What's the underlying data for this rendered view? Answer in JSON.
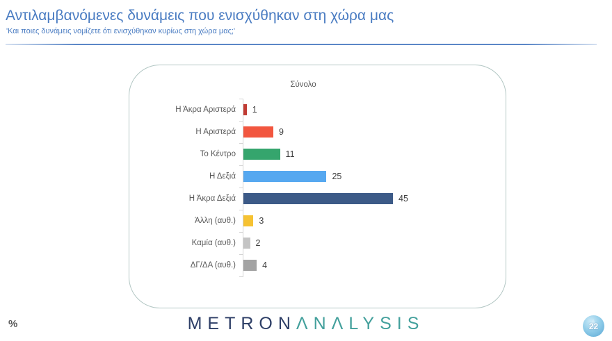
{
  "page": {
    "title": "Αντιλαμβανόμενες δυνάμεις που ενισχύθηκαν στη χώρα μας",
    "subtitle": "'Και ποιες δυνάμεις νομίζετε ότι ενισχύθηκαν κυρίως στη χώρα μας;'",
    "percent_note": "%",
    "page_number": "22"
  },
  "logo": {
    "left": "METRON",
    "right": "ΛNΛLYSIS"
  },
  "chart_data": {
    "type": "bar",
    "orientation": "horizontal",
    "title": "Σύνολο",
    "categories": [
      "Η Άκρα Αριστερά",
      "Η Αριστερά",
      "Το Κέντρο",
      "Η Δεξιά",
      "Η Άκρα Δεξιά",
      "Άλλη (αυθ.)",
      "Καμία (αυθ.)",
      "ΔΓ/ΔΑ (αυθ.)"
    ],
    "values": [
      1,
      9,
      11,
      25,
      45,
      3,
      2,
      4
    ],
    "bar_colors": [
      "#c13b33",
      "#f2563f",
      "#35a56d",
      "#56a8f0",
      "#3c5a87",
      "#f6c232",
      "#c4c4c4",
      "#a3a3a3"
    ],
    "unit": "%",
    "xlim": [
      0,
      45
    ],
    "grid": false,
    "legend": false,
    "value_labels_shown": true
  },
  "colors": {
    "title_text": "#4a7cc2",
    "divider": "#5b87c7",
    "card_border": "#b3c7c4",
    "axis_line": "#d4d4d4",
    "label_text": "#595959",
    "value_text": "#3f3f3f",
    "logo_left": "#2d3e66",
    "logo_right": "#43a09c",
    "badge_fill": "#8fcce9",
    "badge_text": "#ffffff"
  }
}
